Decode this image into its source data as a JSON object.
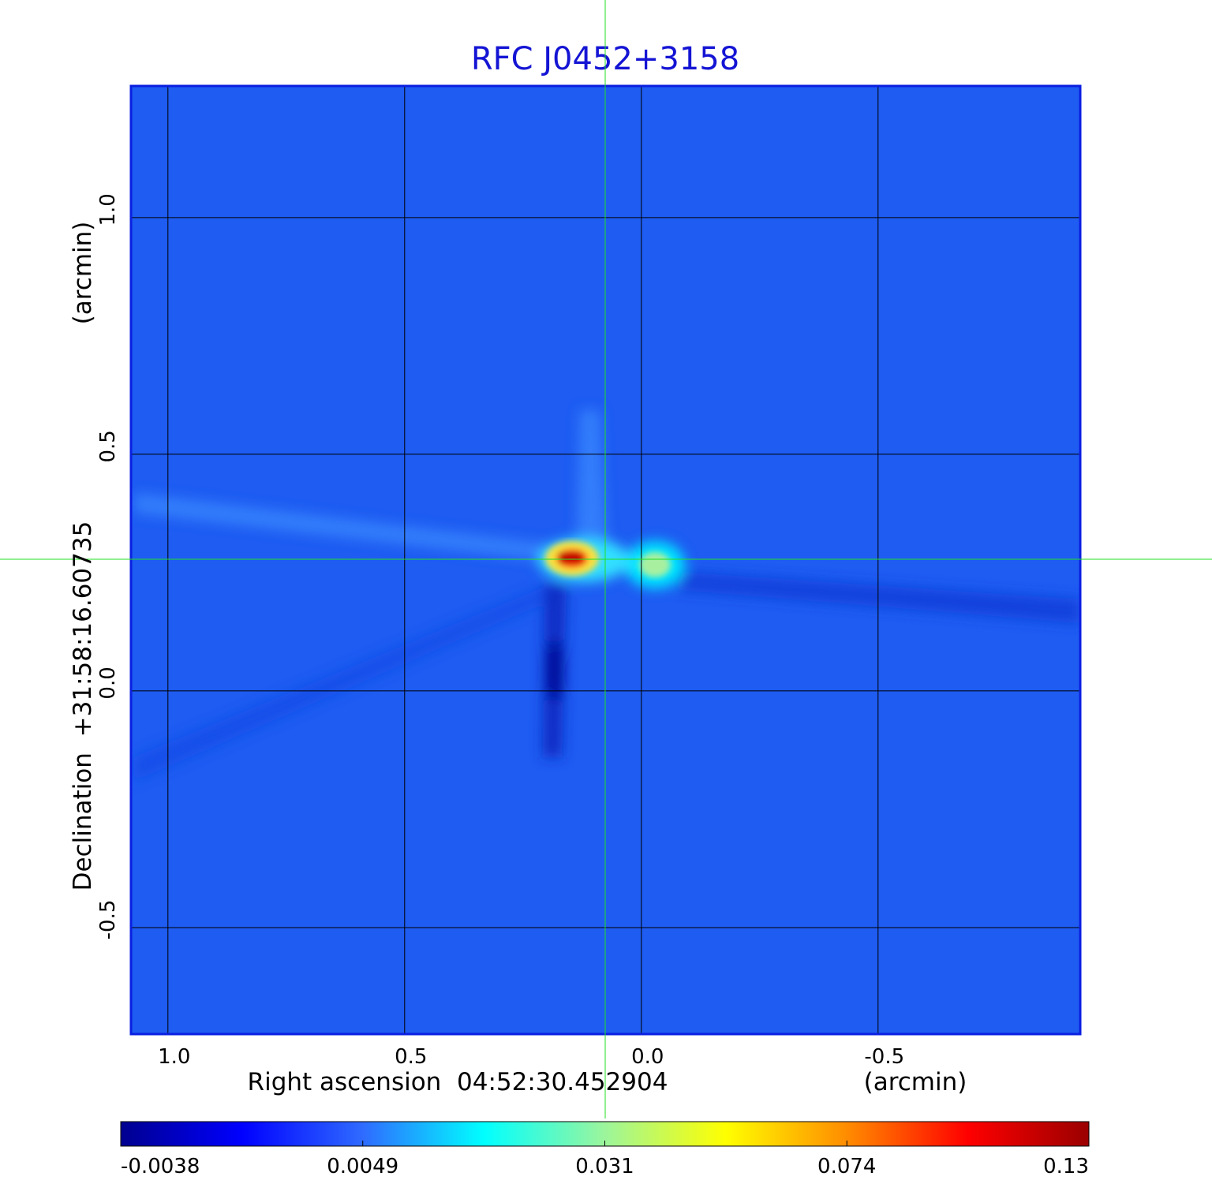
{
  "chart_data": {
    "type": "image",
    "title": "RFC J0452+3158",
    "xlabel": "Right ascension  04:52:30.452904",
    "xunit": "(arcmin)",
    "ylabel": "Declination  +31:58:16.60735",
    "yunit": "(arcmin)",
    "xlim": [
      1.078,
      -0.927
    ],
    "ylim": [
      -0.725,
      1.278
    ],
    "xticks": [
      {
        "value": 1,
        "label": "1.0"
      },
      0.5,
      {
        "value": 0,
        "label": "0.0"
      },
      -0.5
    ],
    "yticks": [
      {
        "value": 1,
        "label": "1.0"
      },
      0.5,
      {
        "value": 0,
        "label": "0.0"
      },
      -0.5
    ],
    "grid": true,
    "colorbar": {
      "ticks": [
        -0.0038,
        0.0049,
        0.031,
        0.074,
        0.13
      ],
      "colormap": [
        "#00008f",
        "#0000ff",
        "#2f6bff",
        "#00ffff",
        "#9cf59c",
        "#ffff00",
        "#ff8c00",
        "#ff0000",
        "#9a0000"
      ]
    }
  }
}
